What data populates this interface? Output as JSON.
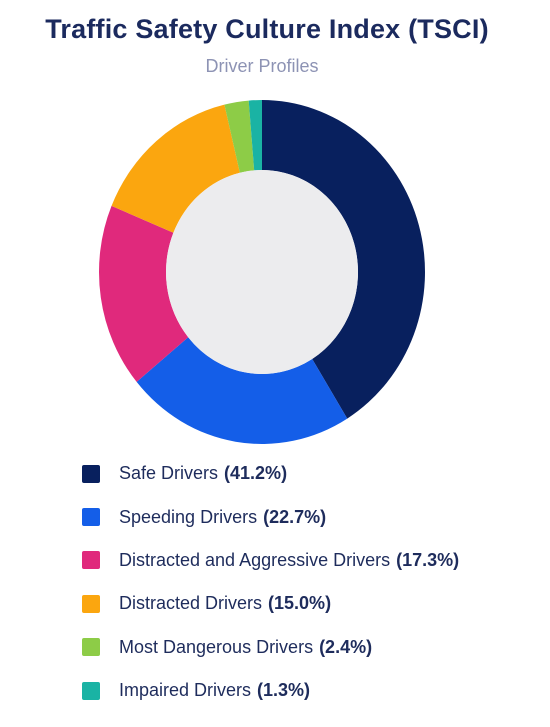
{
  "chart_data": {
    "type": "pie",
    "donut": true,
    "title": "Traffic Safety Culture Index (TSCI)",
    "subtitle": "Driver Profiles",
    "center_color": "#ececee",
    "slices": [
      {
        "label": "Safe Drivers",
        "value": 41.2,
        "value_label": "(41.2%)",
        "color": "#08205e"
      },
      {
        "label": "Speeding Drivers",
        "value": 22.7,
        "value_label": "(22.7%)",
        "color": "#145ee8"
      },
      {
        "label": "Distracted and Aggressive Drivers",
        "value": 17.3,
        "value_label": "(17.3%)",
        "color": "#e0297c"
      },
      {
        "label": "Distracted Drivers",
        "value": 15.0,
        "value_label": "(15.0%)",
        "color": "#fba60f"
      },
      {
        "label": "Most Dangerous Drivers",
        "value": 2.4,
        "value_label": "(2.4%)",
        "color": "#8dcc47"
      },
      {
        "label": "Impaired Drivers",
        "value": 1.3,
        "value_label": "(1.3%)",
        "color": "#1ab3a4"
      }
    ],
    "legend_position": "bottom"
  }
}
